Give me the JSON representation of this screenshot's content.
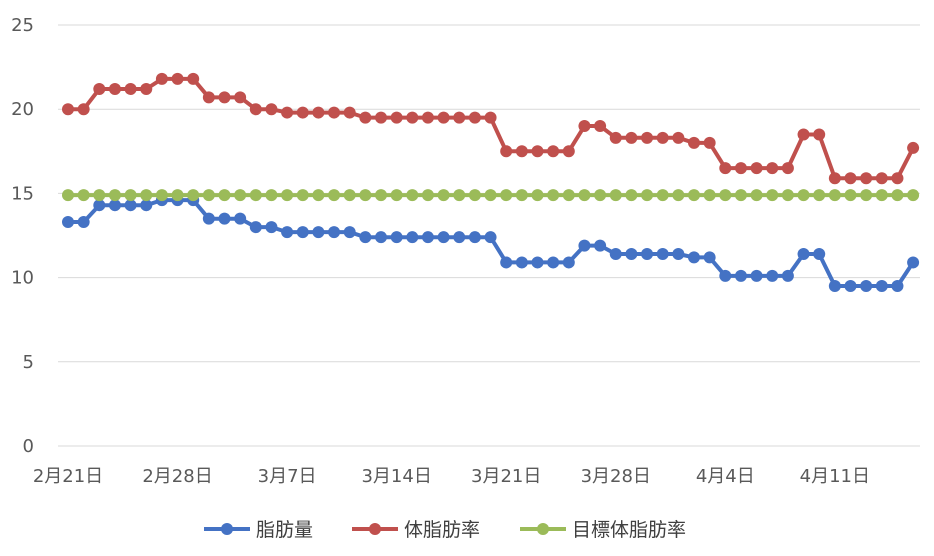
{
  "chart_data": {
    "type": "line",
    "title": "",
    "xlabel": "",
    "ylabel": "",
    "ylim": [
      0,
      25
    ],
    "yticks": [
      0,
      5,
      10,
      15,
      20,
      25
    ],
    "grid": "horizontal",
    "legend_position": "bottom",
    "x": [
      "2021-02-21",
      "2021-02-22",
      "2021-02-23",
      "2021-02-24",
      "2021-02-25",
      "2021-02-26",
      "2021-02-27",
      "2021-02-28",
      "2021-03-01",
      "2021-03-02",
      "2021-03-03",
      "2021-03-04",
      "2021-03-05",
      "2021-03-06",
      "2021-03-07",
      "2021-03-08",
      "2021-03-09",
      "2021-03-10",
      "2021-03-11",
      "2021-03-12",
      "2021-03-13",
      "2021-03-14",
      "2021-03-15",
      "2021-03-16",
      "2021-03-17",
      "2021-03-18",
      "2021-03-19",
      "2021-03-20",
      "2021-03-21",
      "2021-03-22",
      "2021-03-23",
      "2021-03-24",
      "2021-03-25",
      "2021-03-26",
      "2021-03-27",
      "2021-03-28",
      "2021-03-29",
      "2021-03-30",
      "2021-03-31",
      "2021-04-01",
      "2021-04-02",
      "2021-04-03",
      "2021-04-04",
      "2021-04-05",
      "2021-04-06",
      "2021-04-07",
      "2021-04-08",
      "2021-04-09",
      "2021-04-10",
      "2021-04-11",
      "2021-04-12",
      "2021-04-13",
      "2021-04-14",
      "2021-04-15",
      "2021-04-16"
    ],
    "xtick_labels": [
      "2月21日",
      "2月28日",
      "3月7日",
      "3月14日",
      "3月21日",
      "3月28日",
      "4月4日",
      "4月11日"
    ],
    "xtick_indices": [
      0,
      7,
      14,
      21,
      28,
      35,
      42,
      49
    ],
    "series": [
      {
        "name": "脂肪量",
        "color": "#4472C4",
        "values": [
          13.3,
          13.3,
          14.3,
          14.3,
          14.3,
          14.3,
          14.6,
          14.6,
          14.6,
          13.5,
          13.5,
          13.5,
          13.0,
          13.0,
          12.7,
          12.7,
          12.7,
          12.7,
          12.7,
          12.4,
          12.4,
          12.4,
          12.4,
          12.4,
          12.4,
          12.4,
          12.4,
          12.4,
          10.9,
          10.9,
          10.9,
          10.9,
          10.9,
          11.9,
          11.9,
          11.4,
          11.4,
          11.4,
          11.4,
          11.4,
          11.2,
          11.2,
          10.1,
          10.1,
          10.1,
          10.1,
          10.1,
          11.4,
          11.4,
          9.5,
          9.5,
          9.5,
          9.5,
          9.5,
          10.9
        ]
      },
      {
        "name": "体脂肪率",
        "color": "#C0504D",
        "values": [
          20.0,
          20.0,
          21.2,
          21.2,
          21.2,
          21.2,
          21.8,
          21.8,
          21.8,
          20.7,
          20.7,
          20.7,
          20.0,
          20.0,
          19.8,
          19.8,
          19.8,
          19.8,
          19.8,
          19.5,
          19.5,
          19.5,
          19.5,
          19.5,
          19.5,
          19.5,
          19.5,
          19.5,
          17.5,
          17.5,
          17.5,
          17.5,
          17.5,
          19.0,
          19.0,
          18.3,
          18.3,
          18.3,
          18.3,
          18.3,
          18.0,
          18.0,
          16.5,
          16.5,
          16.5,
          16.5,
          16.5,
          18.5,
          18.5,
          15.9,
          15.9,
          15.9,
          15.9,
          15.9,
          17.7
        ]
      },
      {
        "name": "目標体脂肪率",
        "color": "#9BBB59",
        "values": [
          14.9,
          14.9,
          14.9,
          14.9,
          14.9,
          14.9,
          14.9,
          14.9,
          14.9,
          14.9,
          14.9,
          14.9,
          14.9,
          14.9,
          14.9,
          14.9,
          14.9,
          14.9,
          14.9,
          14.9,
          14.9,
          14.9,
          14.9,
          14.9,
          14.9,
          14.9,
          14.9,
          14.9,
          14.9,
          14.9,
          14.9,
          14.9,
          14.9,
          14.9,
          14.9,
          14.9,
          14.9,
          14.9,
          14.9,
          14.9,
          14.9,
          14.9,
          14.9,
          14.9,
          14.9,
          14.9,
          14.9,
          14.9,
          14.9,
          14.9,
          14.9,
          14.9,
          14.9,
          14.9,
          14.9
        ]
      }
    ],
    "gridline_color": "#D9D9D9",
    "axis_color": "#D9D9D9"
  }
}
